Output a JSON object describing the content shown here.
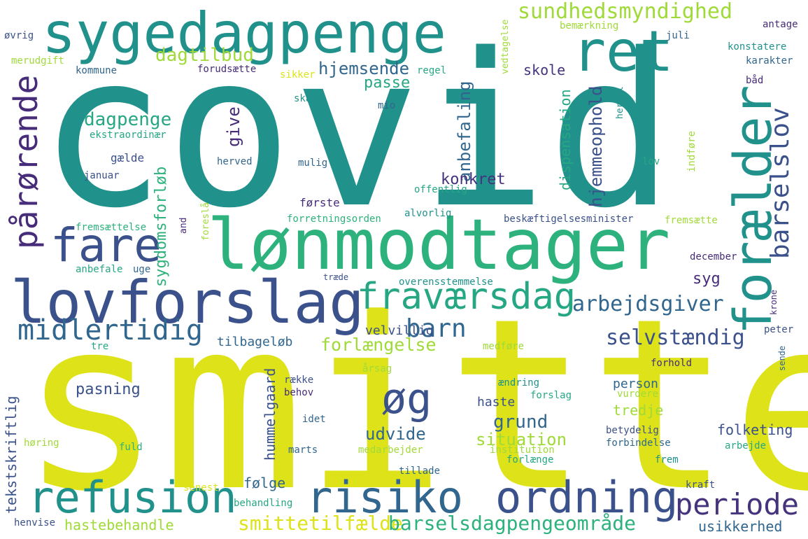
{
  "palette": {
    "teal": "#21918c",
    "yellow": "#dde318",
    "indigo": "#3b518b",
    "purple": "#472c7a",
    "green": "#2db27d",
    "lime": "#a0da39",
    "cyan": "#26a784",
    "navy": "#46337e",
    "sea": "#1f9f88",
    "blue": "#31668e"
  },
  "words": {
    "covid": "covid",
    "smitte": "smitte",
    "sygedagpenge": "sygedagpenge",
    "lonmodtager": "lønmodtager",
    "lovforslag": "lovforslag",
    "ret": "ret",
    "foraelder": "forælder",
    "fare": "fare",
    "parorende": "pårørende",
    "refusion": "refusion",
    "risiko": "risiko",
    "ordning": "ordning",
    "fravaersdag": "fraværsdag",
    "periode": "periode",
    "og": "øg",
    "midlertidig": "midlertidig",
    "barn": "barn",
    "barselslov": "barselslov",
    "sundhedsmyndighed": "sundhedsmyndighed",
    "arbejdsgiver": "arbejdsgiver",
    "selvstaendig": "selvstændig",
    "smittetilfaelde": "smittetilfælde",
    "barselsdagpengeomraade": "barselsdagpengeområde",
    "forlaengelse": "forlængelse",
    "dagpenge": "dagpenge",
    "dagtilbud": "dagtilbud",
    "hjemsende": "hjemsende",
    "anbefaling": "anbefaling",
    "hjemmeophold": "hjemmeophold",
    "give": "give",
    "konkret": "konkret",
    "sygdomsforlob": "sygdomsforløb",
    "dispensation": "dispensation",
    "passe": "passe",
    "skole": "skole",
    "udvide": "udvide",
    "grund": "grund",
    "situation": "situation",
    "hastebehandle": "hastebehandle",
    "usikkerhed": "usikkerhed",
    "pasning": "pasning",
    "folge": "følge",
    "tekstskriftlig": "tekstskriftlig",
    "hummelgaard": "hummelgaard",
    "velvillig": "velvillig",
    "tilbagelob": "tilbageløb",
    "tredje": "tredje",
    "haste": "haste",
    "person": "person",
    "folketing": "folketing",
    "syg": "syg",
    "forste": "første",
    "gaelde": "gælde",
    "ekstraordinaer": "ekstraordinær",
    "januar": "januar",
    "herved": "herved",
    "mulig": "mulig",
    "offentlig": "offentlig",
    "alvorlig": "alvorlig",
    "forretningsorden": "forretningsorden",
    "beskaeftigelsesminister": "beskæftigelsesminister",
    "fremsaette": "fremsætte",
    "fremsaettelse": "fremsættelse",
    "anbefale": "anbefale",
    "uge": "uge",
    "traede": "træde",
    "overensstemmelse": "overensstemmelse",
    "december": "december",
    "krone": "krone",
    "peter": "peter",
    "sende": "sende",
    "tre": "tre",
    "medfore": "medføre",
    "aarsag": "årsag",
    "raekke": "række",
    "behov": "behov",
    "aendring": "ændring",
    "forslag": "forslag",
    "vurdere": "vurdere",
    "forhold": "forhold",
    "idet": "idet",
    "horing": "høring",
    "fuld": "fuld",
    "marts": "marts",
    "medarbejder": "medarbejder",
    "institution": "institution",
    "betydelig": "betydelig",
    "forbindelse": "forbindelse",
    "arbejde": "arbejde",
    "forlaenge": "forlænge",
    "frem": "frem",
    "tillade": "tillade",
    "senest": "senest",
    "kraft": "kraft",
    "behandling": "behandling",
    "henvise": "henvise",
    "ovrig": "øvrig",
    "merudgift": "merudgift",
    "kommune": "kommune",
    "forudsaette": "forudsætte",
    "sikker": "sikker",
    "regel": "regel",
    "skat": "skat",
    "mio": "mio",
    "bemaerkning": "bemærkning",
    "juli": "juli",
    "antage": "antage",
    "konstatere": "konstatere",
    "karakter": "karakter",
    "baad": "båd",
    "vedtagelse": "vedtagelse",
    "hertil": "hertil",
    "indfore": "indføre",
    "lov": "lov",
    "foreslaa": "foreslå",
    "and": "and"
  }
}
